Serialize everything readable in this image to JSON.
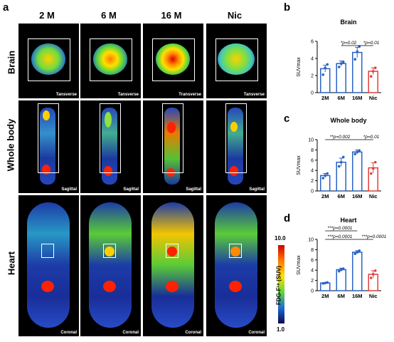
{
  "panel_a": {
    "letter": "a",
    "columns": [
      "2 M",
      "6 M",
      "16 M",
      "Nic"
    ],
    "rows": [
      {
        "label": "Brain",
        "view": "Tansverse",
        "views": [
          "Tansverse",
          "Tansverse",
          "Transverse",
          "Tansverse"
        ]
      },
      {
        "label": "Whole body",
        "view": "Sagittal",
        "views": [
          "Sagittal",
          "Sagittal",
          "Sagittal",
          "Sagittal"
        ]
      },
      {
        "label": "Heart",
        "view": "Coronal",
        "views": [
          "Coronal",
          "Coronal",
          "Coronal",
          "Coronal"
        ]
      }
    ],
    "colorbar": {
      "max": "10.0",
      "min": "1.0",
      "label": "FDG-F¹⁸ (SUV)"
    }
  },
  "chart_data": [
    {
      "letter": "b",
      "type": "bar",
      "title": "Brain",
      "ylabel": "SUVmax",
      "ylim": [
        0,
        6
      ],
      "yticks": [
        0,
        2,
        4,
        6
      ],
      "categories": [
        "2M",
        "6M",
        "16M",
        "Nic"
      ],
      "values": [
        2.8,
        3.4,
        4.7,
        2.5
      ],
      "errors": [
        0.4,
        0.3,
        0.6,
        0.4
      ],
      "points": [
        [
          2.1,
          2.9,
          3.3
        ],
        [
          3.0,
          3.4,
          3.6
        ],
        [
          3.9,
          4.8,
          5.4
        ],
        [
          1.9,
          2.5,
          2.9
        ]
      ],
      "colors": [
        "#2a63c4",
        "#2a63c4",
        "#2a63c4",
        "#e0403b"
      ],
      "sig": [
        "*p=0.02",
        "*p=0.01"
      ]
    },
    {
      "letter": "c",
      "type": "bar",
      "title": "Whole body",
      "ylabel": "SUVmax",
      "ylim": [
        0,
        10
      ],
      "yticks": [
        0,
        2,
        4,
        6,
        8,
        10
      ],
      "categories": [
        "2M",
        "6M",
        "16M",
        "Nic"
      ],
      "values": [
        3.0,
        5.6,
        7.6,
        4.5
      ],
      "errors": [
        0.4,
        0.8,
        0.4,
        1.0
      ],
      "points": [
        [
          2.5,
          3.0,
          3.4
        ],
        [
          4.8,
          5.6,
          6.6
        ],
        [
          7.2,
          7.6,
          7.9
        ],
        [
          3.4,
          4.4,
          5.6
        ]
      ],
      "colors": [
        "#2a63c4",
        "#2a63c4",
        "#2a63c4",
        "#e0403b"
      ],
      "sig": [
        "**p=0.002",
        "*p=0.01"
      ]
    },
    {
      "letter": "d",
      "type": "bar",
      "title": "Heart",
      "ylabel": "SUVmax",
      "ylim": [
        0,
        10
      ],
      "yticks": [
        0,
        2,
        4,
        6,
        8,
        10
      ],
      "categories": [
        "2M",
        "6M",
        "16M",
        "Nic"
      ],
      "values": [
        1.5,
        4.1,
        7.5,
        3.2
      ],
      "errors": [
        0.1,
        0.3,
        0.3,
        0.7
      ],
      "points": [
        [
          1.4,
          1.5,
          1.6
        ],
        [
          3.8,
          4.1,
          4.3
        ],
        [
          7.2,
          7.5,
          7.8
        ],
        [
          2.5,
          3.2,
          3.9
        ]
      ],
      "colors": [
        "#2a63c4",
        "#2a63c4",
        "#2a63c4",
        "#e0403b"
      ],
      "sig": [
        "***p=0.0001",
        "***p=0.0001",
        "***p=0.0001"
      ]
    }
  ]
}
